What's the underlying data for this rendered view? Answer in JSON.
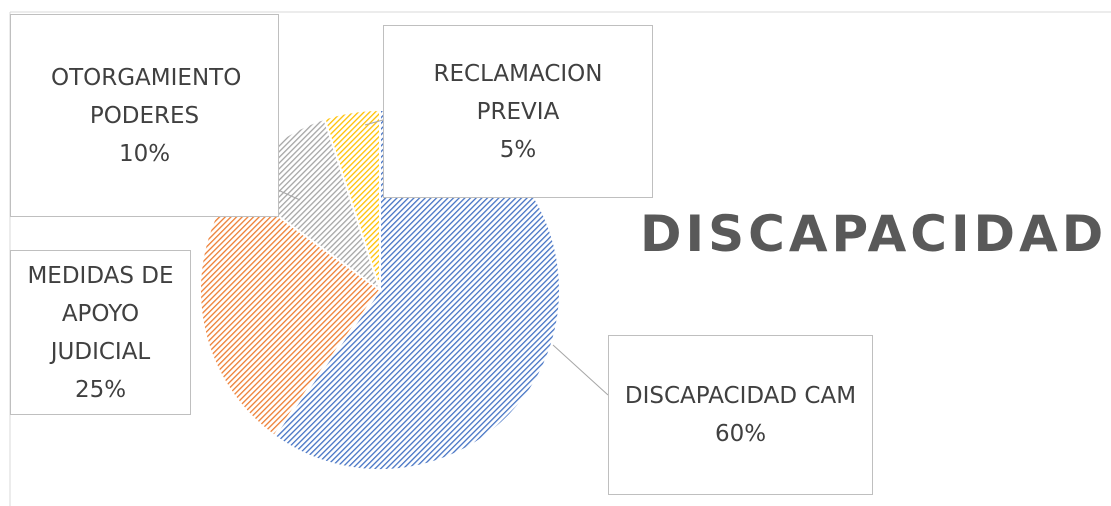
{
  "chart_data": {
    "type": "pie",
    "title": "DISCAPACIDAD",
    "categories": [
      "DISCAPACIDAD CAM",
      "MEDIDAS DE APOYO JUDICIAL",
      "OTORGAMIENTO PODERES",
      "RECLAMACION PREVIA"
    ],
    "values": [
      60,
      25,
      10,
      5
    ],
    "value_labels": [
      "60%",
      "25%",
      "10%",
      "5%"
    ],
    "colors": [
      "#4472c4",
      "#ed7d31",
      "#a5a5a5",
      "#ffc000"
    ]
  }
}
